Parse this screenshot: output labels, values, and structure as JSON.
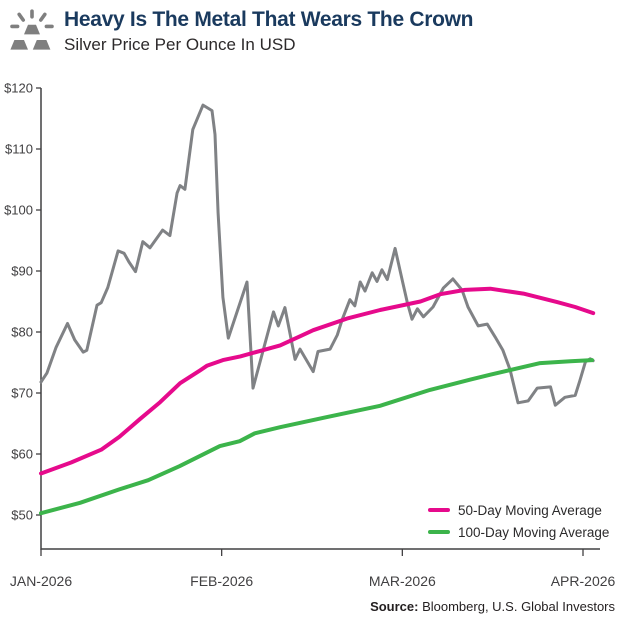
{
  "header": {
    "title": "Heavy Is The Metal That Wears The Crown",
    "subtitle": "Silver Price Per Ounce In USD",
    "icon": "gold-bars-icon"
  },
  "source": {
    "label": "Source:",
    "text": " Bloomberg, U.S. Global Investors"
  },
  "colors": {
    "title_navy": "#1a3a5e",
    "silver_line_gray": "#808285",
    "ma50_pink": "#e60a8c",
    "ma100_green": "#3cb44b",
    "axis_gray": "#414042",
    "icon_gray": "#7f7f7f"
  },
  "chart_data": {
    "type": "line",
    "title": "Heavy Is The Metal That Wears The Crown",
    "subtitle": "Silver Price Per Ounce In USD",
    "ylabel": "Silver price per ounce (USD)",
    "grid": false,
    "legend_position": "bottom-right",
    "x_axis": {
      "tick_labels": [
        "JAN-2026",
        "FEB-2026",
        "MAR-2026",
        "APR-2026"
      ],
      "tick_days": [
        0,
        30,
        60,
        90
      ],
      "range_days": [
        0,
        92.8
      ]
    },
    "y_axis": {
      "tick_labels": [
        "$120",
        "$110",
        "$100",
        "$90",
        "$80",
        "$70",
        "$60",
        "$50"
      ],
      "tick_values": [
        120,
        110,
        100,
        90,
        80,
        70,
        60,
        50
      ],
      "min": 44.4,
      "max": 120
    },
    "series": [
      {
        "name": "Silver Price",
        "color": "#808285",
        "width": 3,
        "in_legend": false,
        "points": [
          [
            0,
            71.8
          ],
          [
            1,
            73.3
          ],
          [
            2.5,
            77.5
          ],
          [
            4.4,
            81.4
          ],
          [
            5.6,
            78.7
          ],
          [
            7,
            76.7
          ],
          [
            7.6,
            77.0
          ],
          [
            9.3,
            84.4
          ],
          [
            10,
            84.8
          ],
          [
            11.1,
            87.3
          ],
          [
            12.8,
            93.3
          ],
          [
            13.8,
            92.9
          ],
          [
            14.6,
            91.5
          ],
          [
            15.7,
            89.9
          ],
          [
            16.9,
            94.8
          ],
          [
            18.1,
            93.8
          ],
          [
            20.2,
            96.7
          ],
          [
            21.4,
            95.8
          ],
          [
            22.6,
            102.8
          ],
          [
            23.1,
            104.0
          ],
          [
            23.9,
            103.4
          ],
          [
            25.2,
            113.2
          ],
          [
            26.9,
            117.2
          ],
          [
            28.4,
            116.3
          ],
          [
            28.9,
            112.4
          ],
          [
            29.4,
            99.5
          ],
          [
            30.2,
            85.7
          ],
          [
            31.1,
            79.0
          ],
          [
            34.2,
            88.2
          ],
          [
            35.2,
            70.8
          ],
          [
            38.6,
            83.3
          ],
          [
            39.4,
            81.0
          ],
          [
            40.5,
            84.0
          ],
          [
            42.2,
            75.5
          ],
          [
            43,
            77.2
          ],
          [
            45.2,
            73.5
          ],
          [
            46,
            76.8
          ],
          [
            48,
            77.2
          ],
          [
            49.2,
            79.5
          ],
          [
            50,
            82.0
          ],
          [
            51.3,
            85.3
          ],
          [
            52.1,
            84.3
          ],
          [
            53,
            88.2
          ],
          [
            53.8,
            86.7
          ],
          [
            55,
            89.7
          ],
          [
            55.8,
            88.3
          ],
          [
            56.6,
            90.2
          ],
          [
            57.5,
            88.6
          ],
          [
            58.8,
            93.7
          ],
          [
            60.1,
            88.0
          ],
          [
            60.8,
            84.9
          ],
          [
            61.6,
            82.1
          ],
          [
            62.5,
            83.8
          ],
          [
            63.5,
            82.5
          ],
          [
            65.1,
            84.1
          ],
          [
            66.8,
            87.2
          ],
          [
            68.4,
            88.7
          ],
          [
            69.9,
            86.9
          ],
          [
            70.9,
            84.1
          ],
          [
            72.6,
            81.0
          ],
          [
            74.1,
            81.3
          ],
          [
            75.4,
            79.2
          ],
          [
            76.7,
            77.0
          ],
          [
            77.9,
            73.8
          ],
          [
            79.2,
            68.4
          ],
          [
            80.9,
            68.7
          ],
          [
            82.4,
            70.8
          ],
          [
            84.6,
            71.0
          ],
          [
            85.4,
            68.0
          ],
          [
            87,
            69.3
          ],
          [
            88.7,
            69.6
          ],
          [
            89.5,
            72.1
          ],
          [
            90.4,
            75.1
          ],
          [
            91.2,
            75.6
          ],
          [
            91.7,
            75.3
          ]
        ]
      },
      {
        "name": "50-Day Moving Average",
        "color": "#e60a8c",
        "width": 4,
        "in_legend": true,
        "points": [
          [
            0,
            56.8
          ],
          [
            5,
            58.6
          ],
          [
            10,
            60.7
          ],
          [
            13,
            62.8
          ],
          [
            16.4,
            65.7
          ],
          [
            19.8,
            68.5
          ],
          [
            23.1,
            71.6
          ],
          [
            26.4,
            73.7
          ],
          [
            27.6,
            74.5
          ],
          [
            30.2,
            75.4
          ],
          [
            33.1,
            76.0
          ],
          [
            36.4,
            76.9
          ],
          [
            39.7,
            77.8
          ],
          [
            43,
            79.3
          ],
          [
            45.2,
            80.3
          ],
          [
            50.8,
            82.2
          ],
          [
            56.3,
            83.6
          ],
          [
            63,
            85.0
          ],
          [
            66.3,
            86.2
          ],
          [
            70.4,
            86.9
          ],
          [
            74.6,
            87.1
          ],
          [
            80.1,
            86.3
          ],
          [
            85.7,
            84.9
          ],
          [
            88.7,
            84.1
          ],
          [
            91.7,
            83.1
          ]
        ]
      },
      {
        "name": "100-Day Moving Average",
        "color": "#3cb44b",
        "width": 4,
        "in_legend": true,
        "points": [
          [
            0,
            50.3
          ],
          [
            6.5,
            52.0
          ],
          [
            13,
            54.2
          ],
          [
            17.8,
            55.7
          ],
          [
            23,
            58.0
          ],
          [
            29.7,
            61.3
          ],
          [
            33,
            62.1
          ],
          [
            35.5,
            63.4
          ],
          [
            39.7,
            64.4
          ],
          [
            47.2,
            66.0
          ],
          [
            56.3,
            67.9
          ],
          [
            64.6,
            70.5
          ],
          [
            71.3,
            72.2
          ],
          [
            74.6,
            73.0
          ],
          [
            82.9,
            74.9
          ],
          [
            87.9,
            75.2
          ],
          [
            91.5,
            75.4
          ]
        ]
      }
    ]
  }
}
